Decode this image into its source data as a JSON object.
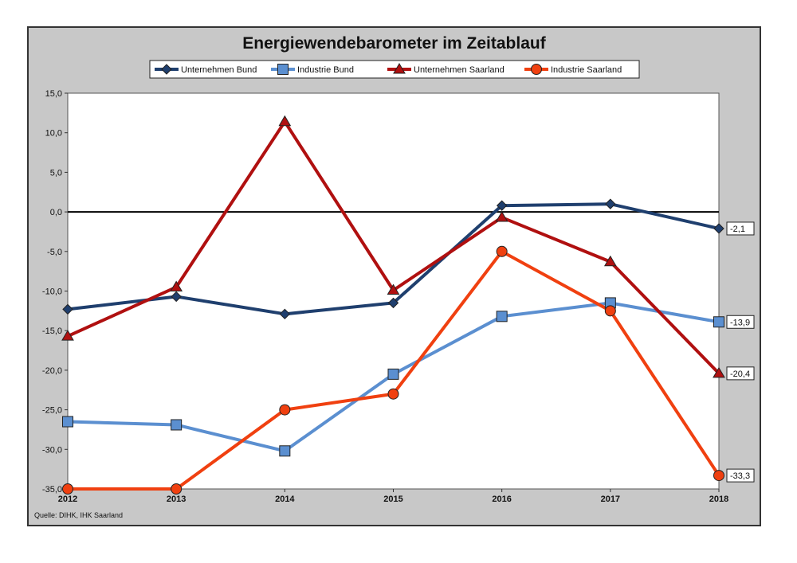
{
  "chart_data": {
    "type": "line",
    "title": "Energiewendebarometer im Zeitablauf",
    "source": "Quelle: DIHK, IHK Saarland",
    "x": [
      "2012",
      "2013",
      "2014",
      "2015",
      "2016",
      "2017",
      "2018"
    ],
    "ylim": [
      -35,
      15
    ],
    "yticks": [
      "-35,0",
      "-30,0",
      "-25,0",
      "-20,0",
      "-15,0",
      "-10,0",
      "-5,0",
      "0,0",
      "5,0",
      "10,0",
      "15,0"
    ],
    "grid": false,
    "legend_position": "top",
    "series": [
      {
        "name": "Unternehmen Bund",
        "color": "#1f3f6e",
        "marker": "diamond",
        "values": [
          -12.3,
          -10.7,
          -12.9,
          -11.5,
          0.8,
          1.0,
          -2.1
        ],
        "end_label": "-2,1"
      },
      {
        "name": "Industrie Bund",
        "color": "#5b8fd0",
        "marker": "square",
        "values": [
          -26.5,
          -26.9,
          -30.2,
          -20.5,
          -13.2,
          -11.5,
          -13.9
        ],
        "end_label": "-13,9"
      },
      {
        "name": "Unternehmen Saarland",
        "color": "#b01010",
        "marker": "triangle",
        "values": [
          -15.7,
          -9.5,
          11.4,
          -9.9,
          -0.7,
          -6.3,
          -20.4
        ],
        "end_label": "-20,4"
      },
      {
        "name": "Industrie Saarland",
        "color": "#f04010",
        "marker": "circle",
        "values": [
          -35.0,
          -35.0,
          -25.0,
          -23.0,
          -5.0,
          -12.5,
          -33.3
        ],
        "end_label": "-33,3"
      }
    ]
  }
}
